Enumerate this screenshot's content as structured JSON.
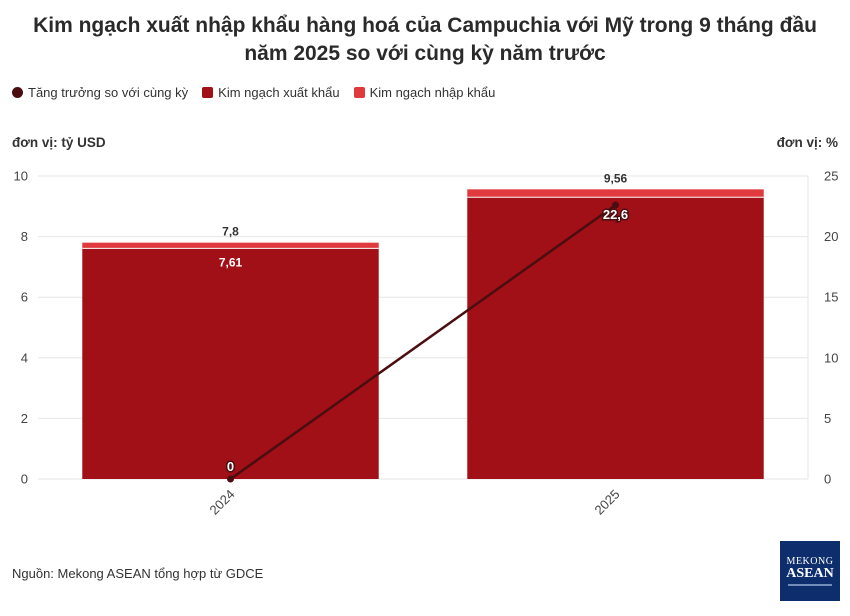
{
  "title_line1": "Kim ngạch xuất nhập khẩu hàng hoá của Campuchia với Mỹ trong 9 tháng đầu",
  "title_line2": "năm 2025 so với cùng kỳ năm trước",
  "legend": [
    {
      "label": "Tăng trưởng so với cùng kỳ",
      "color": "#4a0d10"
    },
    {
      "label": "Kim ngạch xuất khẩu",
      "color": "#a01016"
    },
    {
      "label": "Kim ngạch nhập khẩu",
      "color": "#e03a3e"
    }
  ],
  "unit_left": "đơn vị: tỷ USD",
  "unit_right": "đơn vị: %",
  "source": "Nguồn: Mekong ASEAN tổng hợp từ GDCE",
  "logo": {
    "line1": "MEKONG",
    "line2": "ASEAN"
  },
  "chart_data": {
    "type": "bar",
    "categories": [
      "2024",
      "2025"
    ],
    "series": [
      {
        "name": "Kim ngạch xuất khẩu",
        "values": [
          7.61,
          9.3
        ],
        "color": "#a01016",
        "axis": "left"
      },
      {
        "name": "Kim ngạch nhập khẩu",
        "values": [
          0.19,
          0.26
        ],
        "color": "#e03a3e",
        "axis": "left"
      },
      {
        "name": "Tăng trưởng so với cùng kỳ",
        "type": "line",
        "values": [
          0,
          22.6
        ],
        "color": "#4a0d10",
        "axis": "right"
      }
    ],
    "totals": [
      7.8,
      9.56
    ],
    "total_labels": [
      "7,8",
      "9,56"
    ],
    "export_labels": [
      "7,61",
      ""
    ],
    "growth_labels": [
      "0",
      "22,6"
    ],
    "ylim_left": [
      0,
      10
    ],
    "yticks_left": [
      0,
      2,
      4,
      6,
      8,
      10
    ],
    "ylim_right": [
      0,
      25
    ],
    "yticks_right": [
      0,
      5,
      10,
      15,
      20,
      25
    ],
    "grid": true,
    "legend_position": "top-left"
  }
}
